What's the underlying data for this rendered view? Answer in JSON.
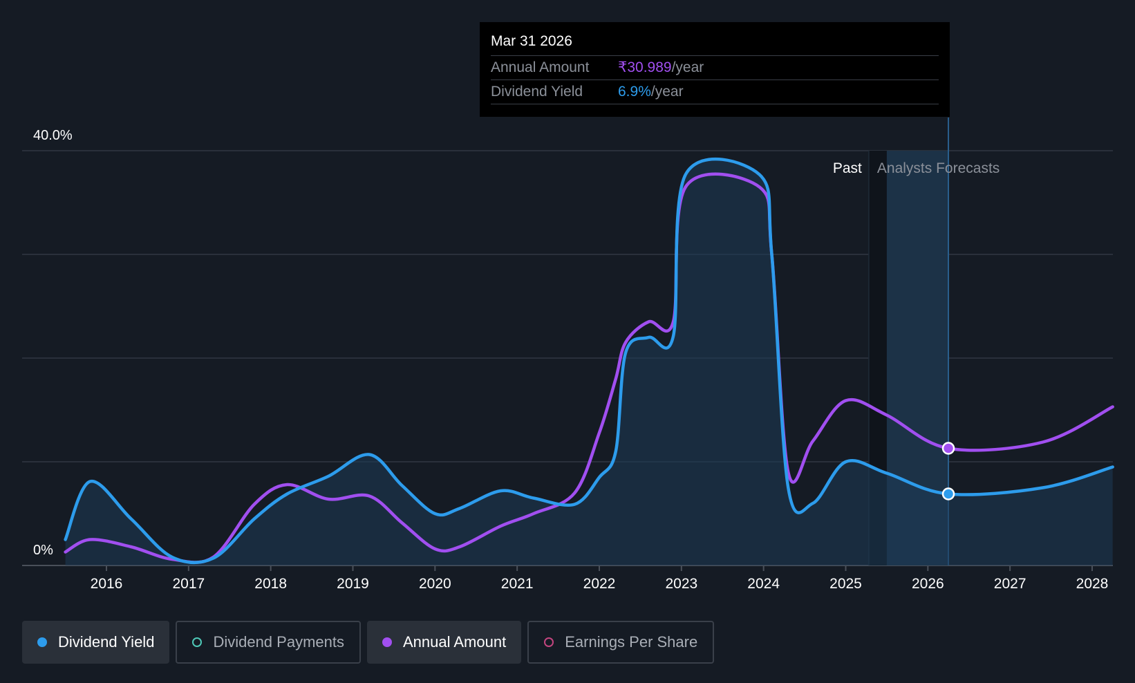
{
  "tooltip": {
    "date": "Mar 31 2026",
    "rows": [
      {
        "label": "Annual Amount",
        "value": "₹30.989",
        "unit": "/year",
        "color": "#a14ff0"
      },
      {
        "label": "Dividend Yield",
        "value": "6.9%",
        "unit": "/year",
        "color": "#2d9cec"
      }
    ]
  },
  "legend": [
    {
      "label": "Dividend Yield",
      "color": "#2d9cec",
      "active": true,
      "filled": true
    },
    {
      "label": "Dividend Payments",
      "color": "#4fc9b8",
      "active": false,
      "filled": false
    },
    {
      "label": "Annual Amount",
      "color": "#a14ff0",
      "active": true,
      "filled": true
    },
    {
      "label": "Earnings Per Share",
      "color": "#c3457f",
      "active": false,
      "filled": false
    }
  ],
  "chart_data": {
    "type": "line",
    "y_tick_labels": [
      "40.0%",
      "0%"
    ],
    "ylim": [
      0,
      40
    ],
    "xlim": [
      2015.0,
      2028.25
    ],
    "x_ticks": [
      2016,
      2017,
      2018,
      2019,
      2020,
      2021,
      2022,
      2023,
      2024,
      2025,
      2026,
      2027,
      2028
    ],
    "grid": true,
    "region_labels": {
      "past": "Past",
      "forecast": "Analysts Forecasts"
    },
    "forecast_start": 2025.5,
    "highlight_x": 2026.25,
    "series": [
      {
        "name": "Dividend Yield",
        "color": "#2d9cec",
        "points": [
          [
            2015.5,
            2.5
          ],
          [
            2015.8,
            8.1
          ],
          [
            2016.3,
            4.5
          ],
          [
            2016.8,
            0.8
          ],
          [
            2017.3,
            0.7
          ],
          [
            2017.8,
            4.5
          ],
          [
            2018.2,
            6.9
          ],
          [
            2018.7,
            8.6
          ],
          [
            2019.2,
            10.7
          ],
          [
            2019.6,
            7.7
          ],
          [
            2020.0,
            5.0
          ],
          [
            2020.3,
            5.5
          ],
          [
            2020.8,
            7.2
          ],
          [
            2021.2,
            6.5
          ],
          [
            2021.7,
            5.9
          ],
          [
            2022.0,
            8.5
          ],
          [
            2022.2,
            11.0
          ],
          [
            2022.32,
            20.5
          ],
          [
            2022.6,
            22.0
          ],
          [
            2022.9,
            22.1
          ],
          [
            2023.05,
            37.7
          ],
          [
            2023.95,
            37.7
          ],
          [
            2024.1,
            30.0
          ],
          [
            2024.3,
            7.5
          ],
          [
            2024.6,
            6.0
          ],
          [
            2025.0,
            10.0
          ],
          [
            2025.5,
            8.9
          ],
          [
            2026.25,
            6.9
          ],
          [
            2027.4,
            7.5
          ],
          [
            2028.25,
            9.5
          ]
        ]
      },
      {
        "name": "Annual Amount",
        "color": "#a14ff0",
        "points": [
          [
            2015.5,
            1.3
          ],
          [
            2015.8,
            2.5
          ],
          [
            2016.3,
            1.8
          ],
          [
            2016.8,
            0.6
          ],
          [
            2017.3,
            0.8
          ],
          [
            2017.8,
            5.9
          ],
          [
            2018.2,
            7.8
          ],
          [
            2018.7,
            6.4
          ],
          [
            2019.2,
            6.7
          ],
          [
            2019.6,
            4.1
          ],
          [
            2020.0,
            1.6
          ],
          [
            2020.3,
            1.8
          ],
          [
            2020.8,
            3.8
          ],
          [
            2021.2,
            5.0
          ],
          [
            2021.7,
            7.0
          ],
          [
            2022.0,
            12.8
          ],
          [
            2022.2,
            18.0
          ],
          [
            2022.32,
            21.5
          ],
          [
            2022.6,
            23.5
          ],
          [
            2022.9,
            23.5
          ],
          [
            2023.05,
            36.5
          ],
          [
            2023.95,
            36.5
          ],
          [
            2024.1,
            30.0
          ],
          [
            2024.3,
            9.0
          ],
          [
            2024.6,
            12.0
          ],
          [
            2025.0,
            15.9
          ],
          [
            2025.5,
            14.5
          ],
          [
            2026.25,
            11.3
          ],
          [
            2027.4,
            11.9
          ],
          [
            2028.25,
            15.3
          ]
        ]
      }
    ]
  }
}
